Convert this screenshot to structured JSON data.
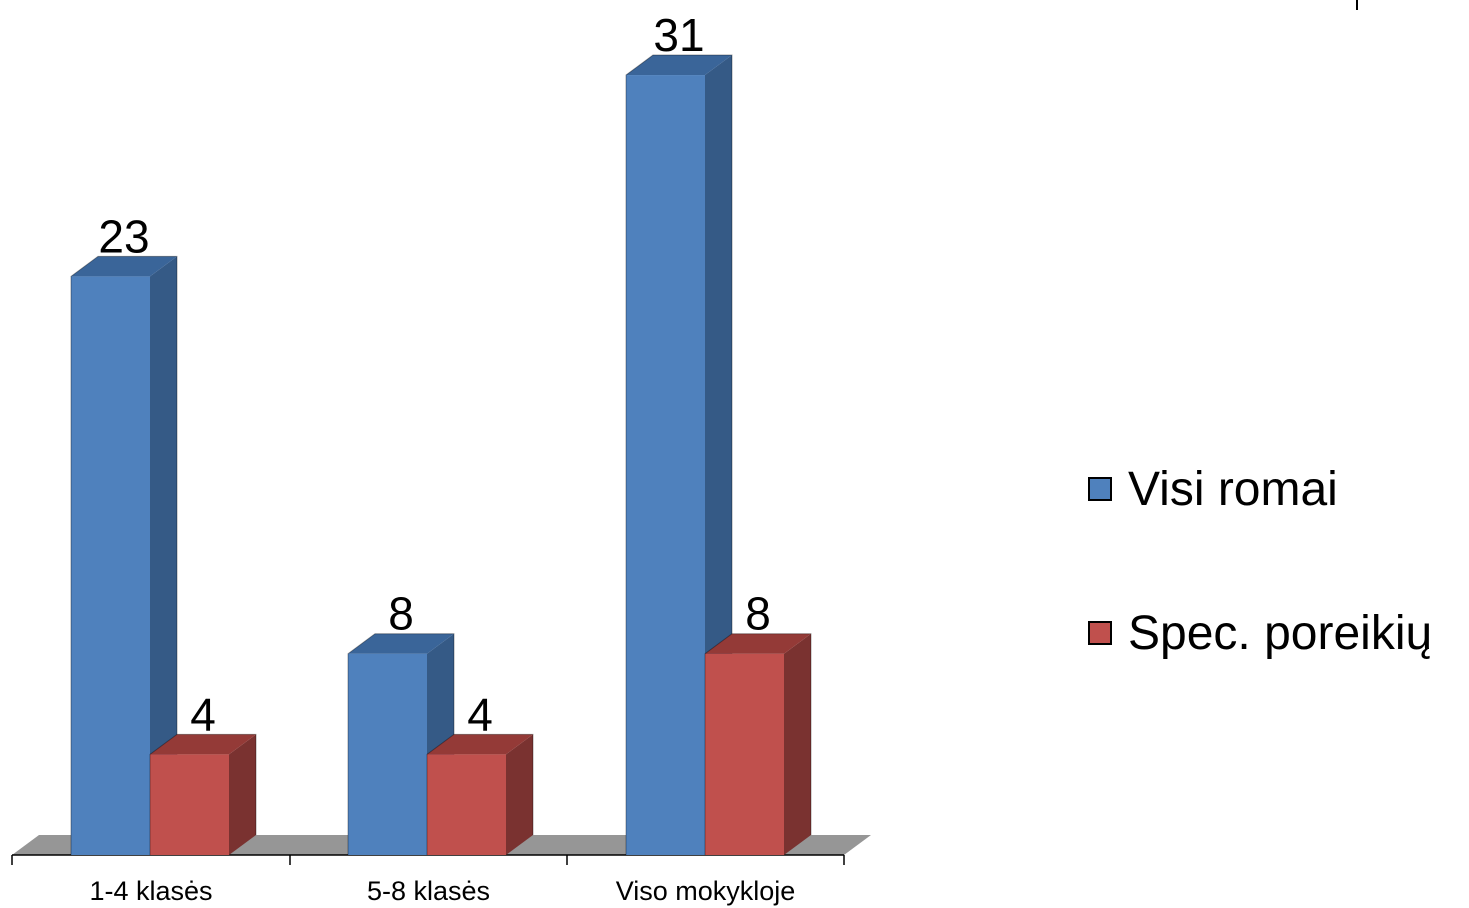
{
  "chart_data": {
    "type": "bar",
    "three_d": true,
    "categories": [
      "1-4 klasės",
      "5-8 klasės",
      "Viso mokykloje"
    ],
    "series": [
      {
        "name": "Visi romai",
        "values": [
          23,
          8,
          31
        ],
        "color": "#4F81BD",
        "side_color": "#355A86",
        "top_color": "#3A6599"
      },
      {
        "name": "Spec. poreikių",
        "values": [
          4,
          4,
          8
        ],
        "color": "#C0504D",
        "side_color": "#7A3230",
        "top_color": "#943A37"
      }
    ],
    "data_labels": true,
    "legend": "right",
    "grid": false,
    "title": "",
    "xlabel": "",
    "ylabel": "",
    "floor_color": "#969696"
  }
}
